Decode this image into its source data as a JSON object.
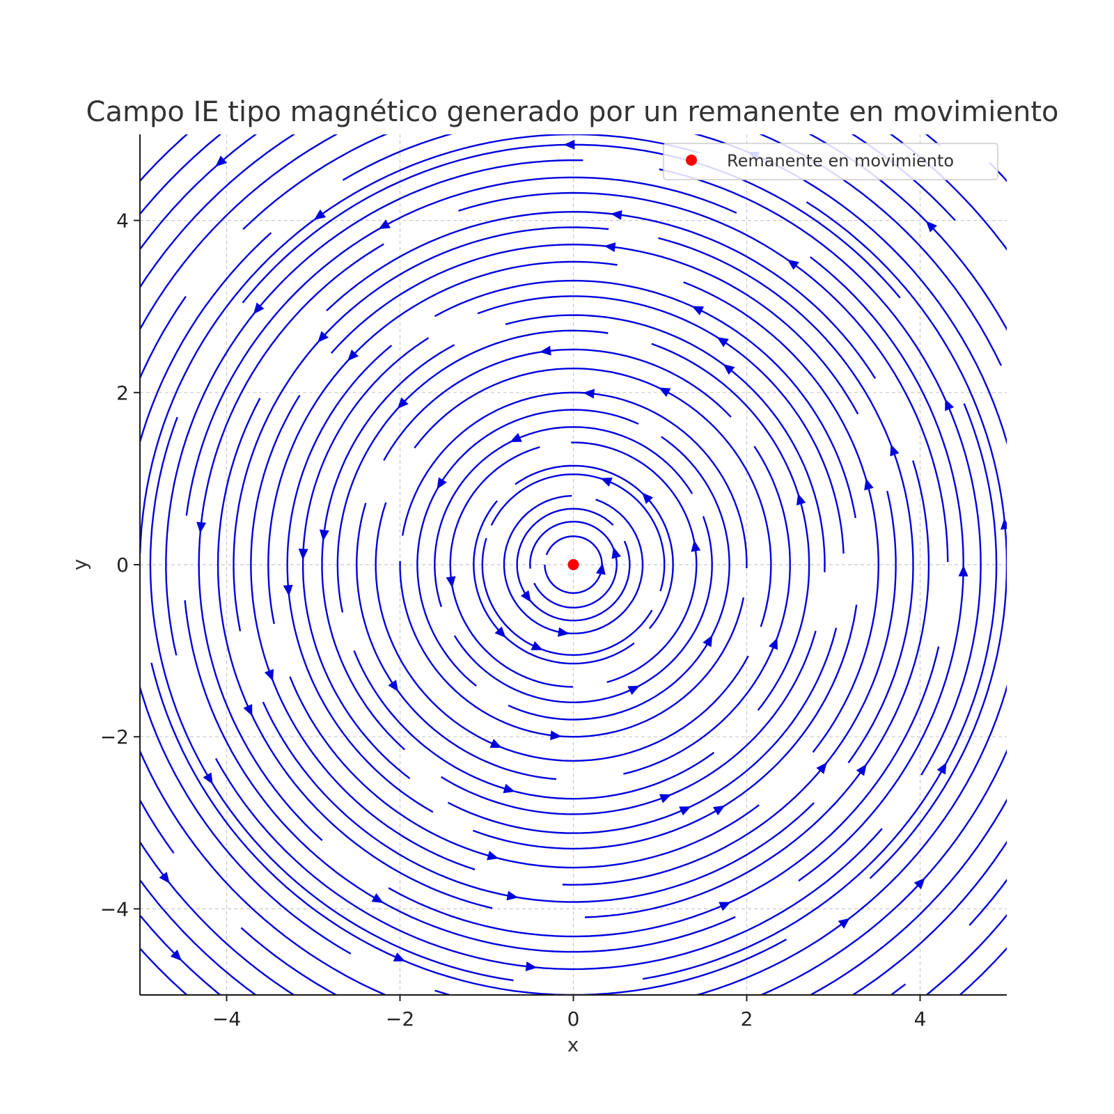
{
  "chart_data": {
    "type": "streamplot",
    "title": "Campo IE tipo magnético generado por un remanente en movimiento",
    "xlabel": "x",
    "ylabel": "y",
    "xlim": [
      -5,
      5
    ],
    "ylim": [
      -5,
      5
    ],
    "xticks": [
      -4,
      -2,
      0,
      2,
      4
    ],
    "yticks": [
      -4,
      -2,
      0,
      2,
      4
    ],
    "xtick_labels": [
      "−4",
      "−2",
      "0",
      "2",
      "4"
    ],
    "ytick_labels": [
      "−4",
      "−2",
      "0",
      "2",
      "4"
    ],
    "grid": true,
    "field": {
      "description_of_form": "circulating field around origin, counter-clockwise",
      "radii": [
        0.33,
        0.5,
        0.65,
        0.8,
        1.05,
        1.15,
        1.42,
        1.6,
        1.8,
        2.0,
        2.28,
        2.5,
        2.72,
        2.9,
        3.12,
        3.3,
        3.52,
        3.72,
        3.92,
        4.1,
        4.32,
        4.5,
        4.7,
        4.88,
        5.0,
        5.2,
        5.45,
        5.7,
        5.95,
        6.2,
        6.45,
        6.7
      ],
      "color": "#0000dd"
    },
    "points": [
      {
        "name": "Remanente en movimiento",
        "x": 0,
        "y": 0,
        "color": "#ff0000"
      }
    ],
    "legend": {
      "placement": "upper-right",
      "entries": [
        {
          "label": "Remanente en movimiento",
          "color": "#ff0000",
          "marker": "circle"
        }
      ]
    }
  }
}
